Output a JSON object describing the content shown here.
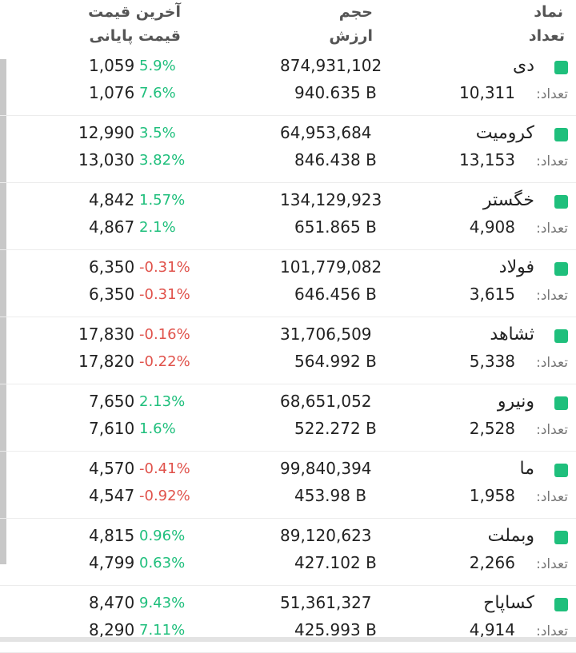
{
  "header": {
    "col_symbol": "نماد",
    "col_count": "تعداد",
    "col_volume": "حجم",
    "col_value": "ارزش",
    "col_last_price": "آخرین قیمت",
    "col_final_price": "قیمت پایانی"
  },
  "count_label": "تعداد:",
  "colors": {
    "positive": "#1fbf7c",
    "negative": "#e0524b",
    "badge": "#1fbf7c"
  },
  "rows": [
    {
      "name": "دی",
      "count": "10,311",
      "volume": "874,931,102",
      "value": "940.635 B",
      "last": "1,059",
      "last_pct": "5.9%",
      "last_dir": "pos",
      "final": "1,076",
      "final_pct": "7.6%",
      "final_dir": "pos"
    },
    {
      "name": "کرومیت",
      "count": "13,153",
      "volume": "64,953,684",
      "value": "846.438 B",
      "last": "12,990",
      "last_pct": "3.5%",
      "last_dir": "pos",
      "final": "13,030",
      "final_pct": "3.82%",
      "final_dir": "pos"
    },
    {
      "name": "خگستر",
      "count": "4,908",
      "volume": "134,129,923",
      "value": "651.865 B",
      "last": "4,842",
      "last_pct": "1.57%",
      "last_dir": "pos",
      "final": "4,867",
      "final_pct": "2.1%",
      "final_dir": "pos"
    },
    {
      "name": "فولاد",
      "count": "3,615",
      "volume": "101,779,082",
      "value": "646.456 B",
      "last": "6,350",
      "last_pct": "-0.31%",
      "last_dir": "neg",
      "final": "6,350",
      "final_pct": "-0.31%",
      "final_dir": "neg"
    },
    {
      "name": "ثشاهد",
      "count": "5,338",
      "volume": "31,706,509",
      "value": "564.992 B",
      "last": "17,830",
      "last_pct": "-0.16%",
      "last_dir": "neg",
      "final": "17,820",
      "final_pct": "-0.22%",
      "final_dir": "neg"
    },
    {
      "name": "ونیرو",
      "count": "2,528",
      "volume": "68,651,052",
      "value": "522.272 B",
      "last": "7,650",
      "last_pct": "2.13%",
      "last_dir": "pos",
      "final": "7,610",
      "final_pct": "1.6%",
      "final_dir": "pos"
    },
    {
      "name": "ما",
      "count": "1,958",
      "volume": "99,840,394",
      "value": "453.98 B",
      "last": "4,570",
      "last_pct": "-0.41%",
      "last_dir": "neg",
      "final": "4,547",
      "final_pct": "-0.92%",
      "final_dir": "neg"
    },
    {
      "name": "وبملت",
      "count": "2,266",
      "volume": "89,120,623",
      "value": "427.102 B",
      "last": "4,815",
      "last_pct": "0.96%",
      "last_dir": "pos",
      "final": "4,799",
      "final_pct": "0.63%",
      "final_dir": "pos"
    },
    {
      "name": "کساپاح",
      "count": "4,914",
      "volume": "51,361,327",
      "value": "425.993 B",
      "last": "8,470",
      "last_pct": "9.43%",
      "last_dir": "pos",
      "final": "8,290",
      "final_pct": "7.11%",
      "final_dir": "pos"
    }
  ]
}
